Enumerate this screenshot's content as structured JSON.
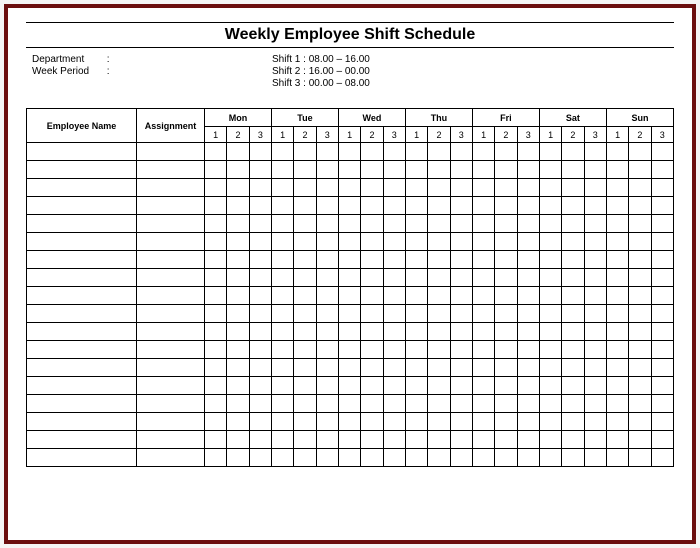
{
  "title": "Weekly Employee Shift Schedule",
  "meta": {
    "left": [
      {
        "label": "Department",
        "value": ""
      },
      {
        "label": "Week Period",
        "value": ""
      }
    ],
    "shifts": [
      {
        "label": "Shift 1",
        "time": "08.00  –  16.00"
      },
      {
        "label": "Shift 2",
        "time": "16.00  –  00.00"
      },
      {
        "label": "Shift 3",
        "time": "00.00  –  08.00"
      }
    ]
  },
  "table": {
    "employee_header": "Employee Name",
    "assignment_header": "Assignment",
    "days": [
      "Mon",
      "Tue",
      "Wed",
      "Thu",
      "Fri",
      "Sat",
      "Sun"
    ],
    "shift_numbers": [
      "1",
      "2",
      "3"
    ],
    "row_count": 18
  },
  "colors": {
    "frame_border": "#6b0f0f",
    "background": "#ffffff",
    "line": "#000000"
  }
}
